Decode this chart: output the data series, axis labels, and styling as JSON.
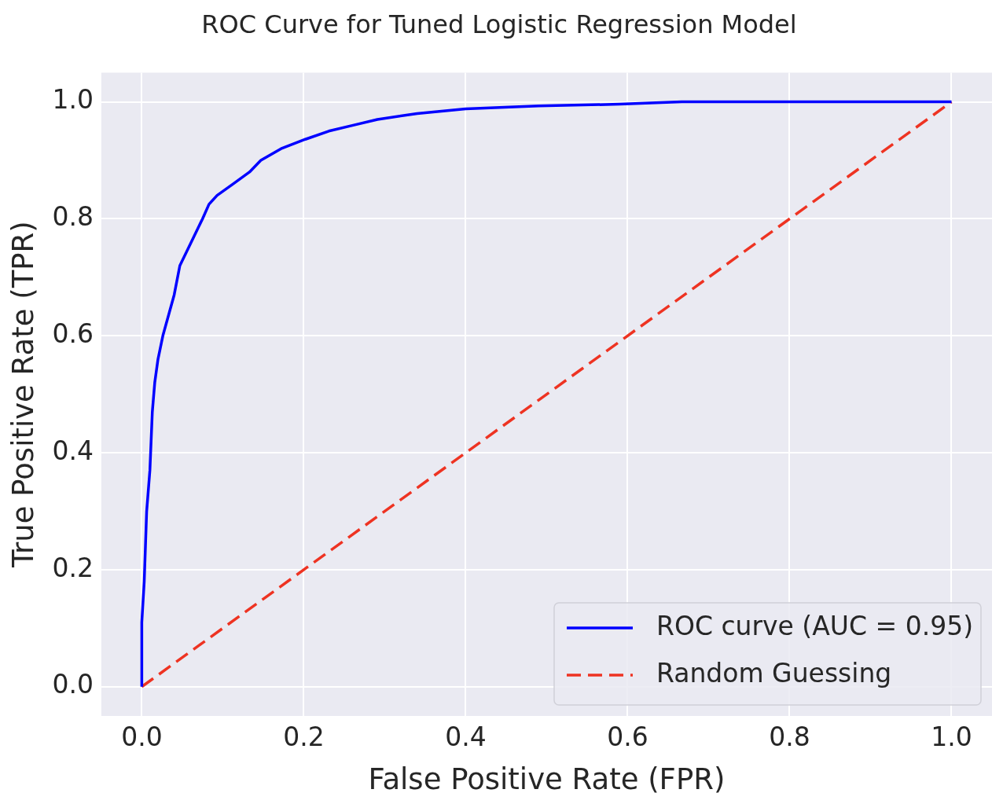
{
  "chart_data": {
    "type": "line",
    "title": "ROC Curve for Tuned Logistic Regression Model",
    "xlabel": "False Positive Rate (FPR)",
    "ylabel": "True Positive Rate (TPR)",
    "xlim": [
      -0.05,
      1.05
    ],
    "ylim": [
      -0.05,
      1.05
    ],
    "xticks": [
      {
        "value": 0,
        "label": "0.0"
      },
      0.2,
      0.4,
      0.6,
      0.8,
      {
        "value": 1,
        "label": "1.0"
      }
    ],
    "yticks": [
      {
        "value": 0,
        "label": "0.0"
      },
      0.2,
      0.4,
      0.6,
      0.8,
      {
        "value": 1,
        "label": "1.0"
      }
    ],
    "grid": true,
    "legend": "bottom right",
    "marker": "none",
    "series": [
      {
        "name": "ROC curve (AUC = 0.95)",
        "color": "#0000ff",
        "line_style": "solid",
        "x": [
          0,
          0,
          0.003,
          0.006,
          0.01,
          0.013,
          0.016,
          0.02,
          0.026,
          0.034,
          0.04,
          0.047,
          0.061,
          0.075,
          0.083,
          0.093,
          0.113,
          0.133,
          0.147,
          0.172,
          0.202,
          0.231,
          0.261,
          0.291,
          0.34,
          0.4,
          0.49,
          0.59,
          0.667,
          1
        ],
        "values": [
          0,
          0.11,
          0.18,
          0.3,
          0.37,
          0.47,
          0.52,
          0.56,
          0.6,
          0.64,
          0.67,
          0.72,
          0.76,
          0.8,
          0.825,
          0.84,
          0.86,
          0.88,
          0.9,
          0.92,
          0.936,
          0.95,
          0.96,
          0.97,
          0.98,
          0.988,
          0.993,
          0.996,
          1,
          1
        ]
      },
      {
        "name": "Random Guessing",
        "color": "#ee3322",
        "line_style": "dashed",
        "x": [
          0,
          1
        ],
        "values": [
          0,
          1
        ]
      }
    ]
  }
}
